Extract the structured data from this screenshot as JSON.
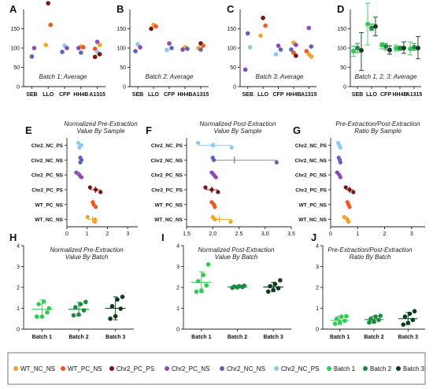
{
  "figure": {
    "panel_letters": [
      "A",
      "B",
      "C",
      "D",
      "E",
      "F",
      "G",
      "H",
      "I",
      "J"
    ]
  },
  "colors": {
    "WT_NC_NS": "#f4a32a",
    "WT_PC_NS": "#ef5a22",
    "Chr2_PC_PS": "#7a1410",
    "Chr2_PC_NS": "#8b4bb3",
    "Chr2_NC_NS": "#5867b8",
    "Chr2_NC_PS": "#8ec9ec",
    "Batch 1": "#2ecc4f",
    "Batch 2": "#1c8a3d",
    "Batch 3": "#0e3d1d",
    "axis": "#222222"
  },
  "legend": {
    "items": [
      {
        "label": "WT_NC_NS",
        "key": "WT_NC_NS"
      },
      {
        "label": "WT_PC_NS",
        "key": "WT_PC_NS"
      },
      {
        "label": "Chr2_PC_PS",
        "key": "Chr2_PC_PS"
      },
      {
        "label": "Chr2_PC_NS",
        "key": "Chr2_PC_NS"
      },
      {
        "label": "Chr2_NC_NS",
        "key": "Chr2_NC_NS"
      },
      {
        "label": "Chr2_NC_PS",
        "key": "Chr2_NC_PS"
      },
      {
        "label": "Batch 1",
        "key": "Batch 1"
      },
      {
        "label": "Batch 2",
        "key": "Batch 2"
      },
      {
        "label": "Batch 3",
        "key": "Batch 3"
      }
    ]
  },
  "chart_data": [
    {
      "panel": "A",
      "type": "scatter",
      "title": "Batch 1: Average",
      "categories": [
        "SEB",
        "LLO",
        "CFP",
        "HH4B",
        "A1315"
      ],
      "ylim": [
        0,
        200
      ],
      "yticks": [
        0,
        50,
        100,
        150
      ],
      "grid": false,
      "points": [
        {
          "cat": "SEB",
          "y": 78,
          "s": "Chr2_NC_NS"
        },
        {
          "cat": "SEB",
          "y": 100,
          "s": "Chr2_PC_NS"
        },
        {
          "cat": "LLO",
          "y": 216,
          "s": "Chr2_PC_PS"
        },
        {
          "cat": "LLO",
          "y": 160,
          "s": "WT_PC_NS"
        },
        {
          "cat": "LLO",
          "y": 108,
          "s": "WT_NC_NS"
        },
        {
          "cat": "CFP",
          "y": 106,
          "s": "Chr2_NC_PS"
        },
        {
          "cat": "CFP",
          "y": 100,
          "s": "Chr2_PC_NS"
        },
        {
          "cat": "CFP",
          "y": 90,
          "s": "Chr2_NC_NS"
        },
        {
          "cat": "HH4B",
          "y": 104,
          "s": "WT_NC_NS"
        },
        {
          "cat": "HH4B",
          "y": 102,
          "s": "WT_PC_NS"
        },
        {
          "cat": "HH4B",
          "y": 100,
          "s": "Chr2_PC_NS"
        },
        {
          "cat": "HH4B",
          "y": 88,
          "s": "Chr2_NC_NS"
        },
        {
          "cat": "A1315",
          "y": 116,
          "s": "Chr2_PC_NS"
        },
        {
          "cat": "A1315",
          "y": 108,
          "s": "WT_NC_NS"
        },
        {
          "cat": "A1315",
          "y": 98,
          "s": "WT_PC_NS"
        },
        {
          "cat": "A1315",
          "y": 90,
          "s": "Chr2_NC_PS"
        },
        {
          "cat": "A1315",
          "y": 84,
          "s": "Chr2_PC_PS"
        },
        {
          "cat": "A1315",
          "y": 77,
          "s": "Chr2_PC_PS"
        }
      ]
    },
    {
      "panel": "B",
      "type": "scatter",
      "title": "Batch 2: Average",
      "categories": [
        "SEB",
        "LLO",
        "CFP",
        "HH4B",
        "A1315"
      ],
      "ylim": [
        0,
        200
      ],
      "yticks": [
        0,
        50,
        100,
        150
      ],
      "grid": false,
      "points": [
        {
          "cat": "SEB",
          "y": 110,
          "s": "Chr2_NC_PS"
        },
        {
          "cat": "SEB",
          "y": 102,
          "s": "Chr2_PC_NS"
        },
        {
          "cat": "SEB",
          "y": 92,
          "s": "Chr2_NC_NS"
        },
        {
          "cat": "LLO",
          "y": 160,
          "s": "WT_NC_NS"
        },
        {
          "cat": "LLO",
          "y": 156,
          "s": "WT_PC_NS"
        },
        {
          "cat": "LLO",
          "y": 150,
          "s": "Chr2_PC_PS"
        },
        {
          "cat": "CFP",
          "y": 112,
          "s": "Chr2_PC_NS"
        },
        {
          "cat": "CFP",
          "y": 100,
          "s": "Chr2_NC_NS"
        },
        {
          "cat": "CFP",
          "y": 95,
          "s": "Chr2_NC_PS"
        },
        {
          "cat": "HH4B",
          "y": 102,
          "s": "WT_NC_NS"
        },
        {
          "cat": "HH4B",
          "y": 98,
          "s": "Chr2_NC_NS"
        },
        {
          "cat": "HH4B",
          "y": 96,
          "s": "Chr2_PC_NS"
        },
        {
          "cat": "A1315",
          "y": 112,
          "s": "Chr2_PC_PS"
        },
        {
          "cat": "A1315",
          "y": 106,
          "s": "WT_PC_NS"
        },
        {
          "cat": "A1315",
          "y": 100,
          "s": "WT_NC_NS"
        },
        {
          "cat": "A1315",
          "y": 96,
          "s": "Chr2_NC_NS"
        }
      ]
    },
    {
      "panel": "C",
      "type": "scatter",
      "title": "Batch 3: Average",
      "categories": [
        "SEB",
        "LLO",
        "CFP",
        "HH4B",
        "A1315"
      ],
      "ylim": [
        0,
        200
      ],
      "yticks": [
        0,
        50,
        100,
        150
      ],
      "grid": false,
      "points": [
        {
          "cat": "SEB",
          "y": 138,
          "s": "Chr2_NC_NS"
        },
        {
          "cat": "SEB",
          "y": 102,
          "s": "Chr2_NC_PS"
        },
        {
          "cat": "SEB",
          "y": 44,
          "s": "Chr2_PC_NS"
        },
        {
          "cat": "LLO",
          "y": 178,
          "s": "Chr2_PC_PS"
        },
        {
          "cat": "LLO",
          "y": 158,
          "s": "WT_PC_NS"
        },
        {
          "cat": "LLO",
          "y": 132,
          "s": "WT_NC_NS"
        },
        {
          "cat": "CFP",
          "y": 106,
          "s": "Chr2_PC_NS"
        },
        {
          "cat": "CFP",
          "y": 96,
          "s": "Chr2_NC_NS"
        },
        {
          "cat": "CFP",
          "y": 84,
          "s": "Chr2_NC_PS"
        },
        {
          "cat": "HH4B",
          "y": 114,
          "s": "WT_NC_NS"
        },
        {
          "cat": "HH4B",
          "y": 108,
          "s": "Chr2_PC_NS"
        },
        {
          "cat": "HH4B",
          "y": 96,
          "s": "Chr2_NC_NS"
        },
        {
          "cat": "HH4B",
          "y": 88,
          "s": "WT_PC_NS"
        },
        {
          "cat": "HH4B",
          "y": 80,
          "s": "Chr2_PC_PS"
        },
        {
          "cat": "A1315",
          "y": 152,
          "s": "Chr2_PC_NS"
        },
        {
          "cat": "A1315",
          "y": 104,
          "s": "Chr2_NC_NS"
        },
        {
          "cat": "A1315",
          "y": 92,
          "s": "WT_PC_NS"
        },
        {
          "cat": "A1315",
          "y": 84,
          "s": "WT_NC_NS"
        },
        {
          "cat": "A1315",
          "y": 78,
          "s": "WT_NC_NS"
        }
      ]
    },
    {
      "panel": "D",
      "type": "scatter",
      "title": "Batch 1, 2, 3: Average",
      "categories": [
        "SEB",
        "LLO",
        "CFP",
        "HH4B",
        "A1315"
      ],
      "ylim": [
        0,
        200
      ],
      "yticks": [
        0,
        50,
        100,
        150
      ],
      "grid": false,
      "groups": [
        {
          "cat": "SEB",
          "s": "Batch 1",
          "mean": 92,
          "lo": 78,
          "hi": 105
        },
        {
          "cat": "SEB",
          "s": "Batch 2",
          "mean": 100,
          "lo": 88,
          "hi": 112
        },
        {
          "cat": "SEB",
          "s": "Batch 3",
          "mean": 94,
          "lo": 42,
          "hi": 140
        },
        {
          "cat": "LLO",
          "s": "Batch 1",
          "mean": 162,
          "lo": 108,
          "hi": 216
        },
        {
          "cat": "LLO",
          "s": "Batch 2",
          "mean": 152,
          "lo": 146,
          "hi": 162
        },
        {
          "cat": "LLO",
          "s": "Batch 3",
          "mean": 156,
          "lo": 132,
          "hi": 180
        },
        {
          "cat": "CFP",
          "s": "Batch 1",
          "mean": 108,
          "lo": 98,
          "hi": 114
        },
        {
          "cat": "CFP",
          "s": "Batch 2",
          "mean": 104,
          "lo": 95,
          "hi": 112
        },
        {
          "cat": "CFP",
          "s": "Batch 3",
          "mean": 95,
          "lo": 84,
          "hi": 106
        },
        {
          "cat": "HH4B",
          "s": "Batch 1",
          "mean": 100,
          "lo": 92,
          "hi": 108
        },
        {
          "cat": "HH4B",
          "s": "Batch 2",
          "mean": 100,
          "lo": 94,
          "hi": 104
        },
        {
          "cat": "HH4B",
          "s": "Batch 3",
          "mean": 100,
          "lo": 86,
          "hi": 116
        },
        {
          "cat": "A1315",
          "s": "Batch 1",
          "mean": 98,
          "lo": 82,
          "hi": 116
        },
        {
          "cat": "A1315",
          "s": "Batch 2",
          "mean": 102,
          "lo": 94,
          "hi": 112
        },
        {
          "cat": "A1315",
          "s": "Batch 3",
          "mean": 100,
          "lo": 72,
          "hi": 130
        }
      ]
    },
    {
      "panel": "E",
      "type": "scatter",
      "title": "Normalized Pre-Extraction\nValue By Sample",
      "categories": [
        "Chr2_NC_PS",
        "Chr2_NC_NS",
        "Chr2_PC_NS",
        "Chr2_PC_PS",
        "WT_PC_NS",
        "WT_NC_NS"
      ],
      "xlim": [
        0,
        3.5
      ],
      "xticks": [
        0,
        1,
        2,
        3
      ],
      "grid": false,
      "rows": [
        {
          "cat": "Chr2_NC_PS",
          "s": "Chr2_NC_PS",
          "values": [
            0.56,
            0.72,
            0.62
          ]
        },
        {
          "cat": "Chr2_NC_NS",
          "s": "Chr2_NC_NS",
          "values": [
            0.66,
            0.72,
            0.66
          ]
        },
        {
          "cat": "Chr2_PC_NS",
          "s": "Chr2_PC_NS",
          "values": [
            0.46,
            0.62,
            0.72
          ]
        },
        {
          "cat": "Chr2_PC_PS",
          "s": "Chr2_PC_PS",
          "values": [
            1.14,
            1.42,
            1.66
          ]
        },
        {
          "cat": "WT_PC_NS",
          "s": "WT_PC_NS",
          "values": [
            1.28,
            1.32,
            1.42
          ]
        },
        {
          "cat": "WT_NC_NS",
          "s": "WT_NC_NS",
          "values": [
            1.02,
            1.38,
            1.38
          ]
        }
      ]
    },
    {
      "panel": "F",
      "type": "scatter",
      "title": "Normalized Post-Extraction\nValue By Sample",
      "categories": [
        "Chr2_NC_PS",
        "Chr2_NC_NS",
        "Chr2_PC_NS",
        "Chr2_PC_PS",
        "WT_PC_NS",
        "WT_NC_NS"
      ],
      "xlim": [
        1.5,
        3.5
      ],
      "xticks": [
        1.5,
        2.0,
        2.5,
        3.0,
        3.5
      ],
      "grid": false,
      "rows": [
        {
          "cat": "Chr2_NC_PS",
          "s": "Chr2_NC_PS",
          "values": [
            1.72,
            2.0,
            2.36
          ]
        },
        {
          "cat": "Chr2_NC_NS",
          "s": "Chr2_NC_NS",
          "values": [
            2.0,
            2.02,
            3.22
          ]
        },
        {
          "cat": "Chr2_PC_NS",
          "s": "Chr2_PC_NS",
          "values": [
            1.98,
            2.02,
            2.06
          ]
        },
        {
          "cat": "Chr2_PC_PS",
          "s": "Chr2_PC_PS",
          "values": [
            1.86,
            1.98,
            2.1
          ]
        },
        {
          "cat": "WT_PC_NS",
          "s": "WT_PC_NS",
          "values": [
            1.98,
            2.02,
            2.04
          ]
        },
        {
          "cat": "WT_NC_NS",
          "s": "WT_NC_NS",
          "values": [
            2.0,
            2.04,
            2.34
          ]
        }
      ]
    },
    {
      "panel": "G",
      "type": "scatter",
      "title": "Pre-Extraction/Post-Extraction\nRatio By Sample",
      "categories": [
        "Chr2_NC_PS",
        "Chr2_NC_NS",
        "Chr2_PC_NS",
        "Chr2_PC_PS",
        "WT_PC_NS",
        "WT_NC_NS"
      ],
      "xlim": [
        0,
        3.5
      ],
      "xticks": [
        0,
        1,
        2,
        3
      ],
      "grid": false,
      "rows": [
        {
          "cat": "Chr2_NC_PS",
          "s": "Chr2_NC_PS",
          "values": [
            0.28,
            0.32,
            0.36
          ]
        },
        {
          "cat": "Chr2_NC_NS",
          "s": "Chr2_NC_NS",
          "values": [
            0.3,
            0.34,
            0.36
          ]
        },
        {
          "cat": "Chr2_PC_NS",
          "s": "Chr2_PC_NS",
          "values": [
            0.24,
            0.32,
            0.36
          ]
        },
        {
          "cat": "Chr2_PC_PS",
          "s": "Chr2_PC_PS",
          "values": [
            0.56,
            0.7,
            0.84
          ]
        },
        {
          "cat": "WT_PC_NS",
          "s": "WT_PC_NS",
          "values": [
            0.62,
            0.66,
            0.7
          ]
        },
        {
          "cat": "WT_NC_NS",
          "s": "WT_NC_NS",
          "values": [
            0.5,
            0.62,
            0.66
          ]
        }
      ]
    },
    {
      "panel": "H",
      "type": "scatter",
      "title": "Normalized Pre-Extraction\nValue By Batch",
      "categories": [
        "Batch 1",
        "Batch 2",
        "Batch 3"
      ],
      "ylim": [
        0,
        4
      ],
      "yticks": [
        0,
        1,
        2,
        3,
        4
      ],
      "grid": false,
      "groups": [
        {
          "cat": "Batch 1",
          "s": "Batch 1",
          "mean": 0.95,
          "lo": 0.55,
          "hi": 1.4,
          "values": [
            0.6,
            0.6,
            0.8,
            1.2,
            1.32,
            1.0
          ]
        },
        {
          "cat": "Batch 2",
          "s": "Batch 2",
          "mean": 0.95,
          "lo": 0.65,
          "hi": 1.28,
          "values": [
            0.66,
            0.7,
            0.9,
            1.05,
            1.2,
            1.3
          ]
        },
        {
          "cat": "Batch 3",
          "s": "Batch 3",
          "mean": 1.0,
          "lo": 0.45,
          "hi": 1.55,
          "values": [
            0.5,
            0.62,
            0.98,
            1.1,
            1.42,
            1.55
          ]
        }
      ]
    },
    {
      "panel": "I",
      "type": "scatter",
      "title": "Normalized Post-Extraction\nValue By Batch",
      "categories": [
        "Batch 1",
        "Batch 2",
        "Batch 3"
      ],
      "ylim": [
        0,
        4
      ],
      "yticks": [
        0,
        1,
        2,
        3,
        4
      ],
      "grid": false,
      "groups": [
        {
          "cat": "Batch 1",
          "s": "Batch 1",
          "mean": 2.25,
          "lo": 1.75,
          "hi": 2.75,
          "values": [
            1.8,
            1.85,
            2.1,
            2.3,
            2.6,
            3.1
          ]
        },
        {
          "cat": "Batch 2",
          "s": "Batch 2",
          "mean": 2.03,
          "lo": 1.97,
          "hi": 2.09,
          "values": [
            1.98,
            2.0,
            2.02,
            2.04,
            2.06,
            2.08
          ]
        },
        {
          "cat": "Batch 3",
          "s": "Batch 3",
          "mean": 2.02,
          "lo": 1.8,
          "hi": 2.25,
          "values": [
            1.8,
            1.88,
            1.96,
            2.06,
            2.16,
            2.34
          ]
        }
      ]
    },
    {
      "panel": "J",
      "type": "scatter",
      "title": "Pre-Extraction/Post-Extraction\nRatio By Batch",
      "categories": [
        "Batch 1",
        "Batch 2",
        "Batch 3"
      ],
      "ylim": [
        0,
        4
      ],
      "yticks": [
        0,
        1,
        2,
        3,
        4
      ],
      "grid": false,
      "groups": [
        {
          "cat": "Batch 1",
          "s": "Batch 1",
          "mean": 0.42,
          "lo": 0.22,
          "hi": 0.62,
          "values": [
            0.26,
            0.32,
            0.4,
            0.5,
            0.6,
            0.62
          ]
        },
        {
          "cat": "Batch 2",
          "s": "Batch 2",
          "mean": 0.46,
          "lo": 0.3,
          "hi": 0.62,
          "values": [
            0.32,
            0.36,
            0.44,
            0.5,
            0.6,
            0.64
          ]
        },
        {
          "cat": "Batch 3",
          "s": "Batch 3",
          "mean": 0.5,
          "lo": 0.22,
          "hi": 0.8,
          "values": [
            0.22,
            0.3,
            0.44,
            0.6,
            0.74,
            0.86
          ]
        }
      ]
    }
  ]
}
